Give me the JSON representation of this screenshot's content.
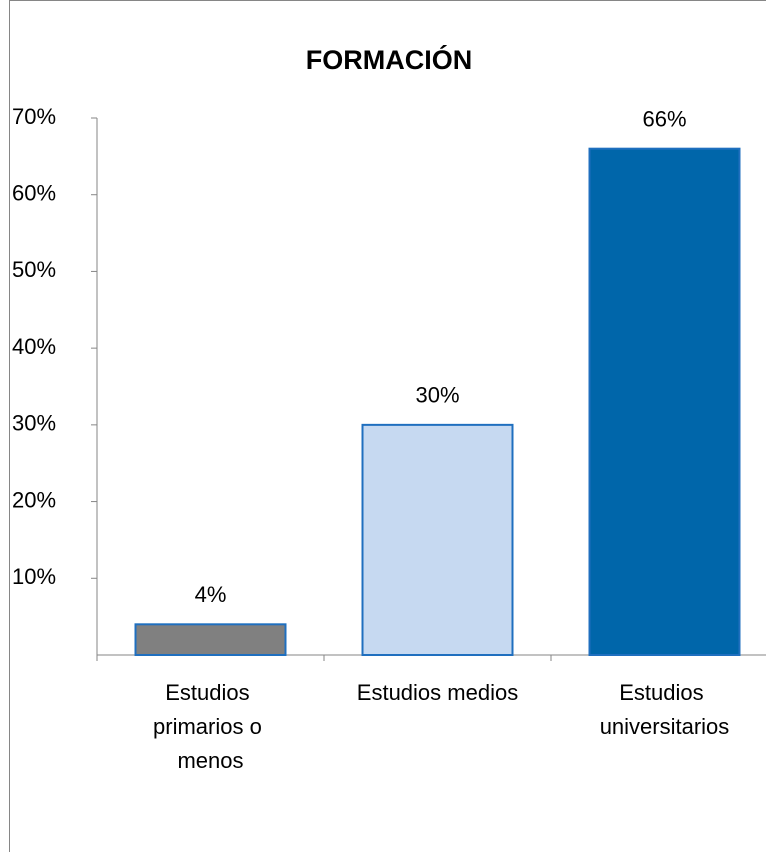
{
  "chart_data": {
    "type": "bar",
    "title": "FORMACIÓN",
    "categories": [
      "Estudios primarios o menos",
      "Estudios medios",
      "Estudios universitarios"
    ],
    "values": [
      4,
      30,
      66
    ],
    "value_labels": [
      "4%",
      "30%",
      "66%"
    ],
    "colors": [
      "#808080",
      "#c6d9f1",
      "#0066aa"
    ],
    "ylim": [
      0,
      70
    ],
    "yticks": [
      {
        "value": 10,
        "label": "10%"
      },
      {
        "value": 20,
        "label": "20%"
      },
      {
        "value": 30,
        "label": "30%"
      },
      {
        "value": 40,
        "label": "40%"
      },
      {
        "value": 50,
        "label": "50%"
      },
      {
        "value": 60,
        "label": "60%"
      },
      {
        "value": 70,
        "label": "70%"
      }
    ],
    "grid": false
  }
}
